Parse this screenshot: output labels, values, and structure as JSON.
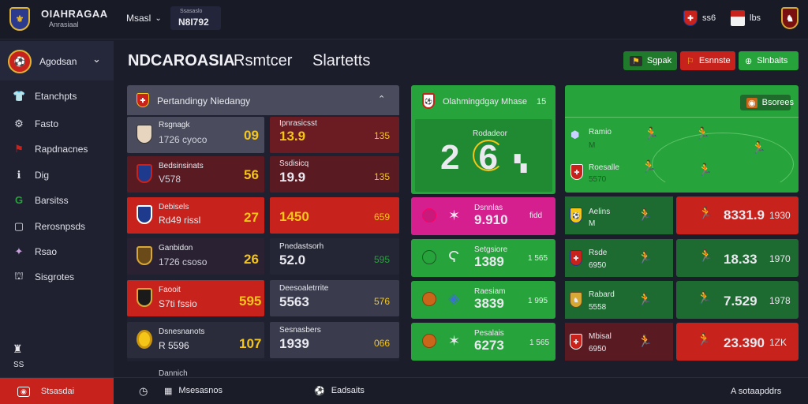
{
  "app": {
    "name": "OIAHRAGAA",
    "subtitle": "Anrasiaal",
    "nav_label": "Msasl",
    "score_box": {
      "top": "Ssasaslo",
      "value": "N8I792"
    },
    "right_items": [
      "ss6",
      "lbs"
    ]
  },
  "sidebar": {
    "header": "Agodsan",
    "items": [
      {
        "icon": "shirt-icon",
        "glyph": "👕",
        "label": "Etanchpts"
      },
      {
        "icon": "gear-icon",
        "glyph": "⚙",
        "label": "Fasto"
      },
      {
        "icon": "flag-icon",
        "glyph": "⚑",
        "label": "Rapdnacnes"
      },
      {
        "icon": "info-icon",
        "glyph": "ℹ",
        "label": "Dig"
      },
      {
        "icon": "g-logo-icon",
        "glyph": "G",
        "label": "Barsitss"
      },
      {
        "icon": "document-icon",
        "glyph": "▢",
        "label": "Rerosnpsds"
      },
      {
        "icon": "user-group-icon",
        "glyph": "✦",
        "label": "Rsao"
      },
      {
        "icon": "stadium-icon",
        "glyph": "⛫",
        "label": "Sisgrotes"
      }
    ],
    "footer_label": "SS"
  },
  "tabs": [
    "NDCAROASIA",
    "Rsmtcer",
    "Slartetts"
  ],
  "actions": [
    {
      "label": "Sgpak",
      "color": "#1f7a2c"
    },
    {
      "label": "Esnnste",
      "color": "#c7221c"
    },
    {
      "label": "Slnbaits",
      "color": "#27a33b"
    }
  ],
  "left_panel": {
    "title": "Pertandingy Niedangy",
    "rows": [
      {
        "name": "Rsgnagk",
        "sub": "1726 cyoco",
        "score": "09",
        "value_label": "Ipnrasicsst",
        "value": "13.9",
        "stat": "135"
      },
      {
        "name": "Bedsinsinats",
        "sub": "V578",
        "score": "56",
        "value_label": "Ssdisicq",
        "value": "19.9",
        "stat": "135"
      },
      {
        "name": "Debisels",
        "sub": "Rd49 rissl",
        "score": "27",
        "value_label": "",
        "value": "1450",
        "stat": "659"
      },
      {
        "name": "Ganbidon",
        "sub": "1726 csoso",
        "score": "26",
        "value_label": "Pnedastsorh",
        "value": "52.0",
        "stat": "595"
      },
      {
        "name": "Faooit",
        "sub": "S7ti fssio",
        "score": "595",
        "value_label": "Deesoaletrrite",
        "value": "5563",
        "stat": "576"
      },
      {
        "name": "Dsnesnanots",
        "sub": "R 5596",
        "score": "107",
        "value_label": "Sesnasbers",
        "value": "1939",
        "stat": "066"
      }
    ],
    "cut_row": "Dannich"
  },
  "match_panel": {
    "title": "Olahmingdgay Mhase",
    "count": "15",
    "label": "Rodadeor",
    "score": "26",
    "rows": [
      {
        "label": "Dsnnlas",
        "value": "9.910",
        "stat": "fidd"
      },
      {
        "label": "Setgsiore",
        "value": "1389",
        "stat": "1 565"
      },
      {
        "label": "Raesiam",
        "value": "3839",
        "stat": "1 995"
      },
      {
        "label": "Pesalais",
        "value": "6273",
        "stat": "1 565"
      }
    ]
  },
  "pitch_panel": {
    "button": "Bsorees",
    "labels": [
      {
        "name": "Ramio",
        "sub": "M"
      },
      {
        "name": "Roesalle",
        "sub": "5570"
      }
    ],
    "rows": [
      {
        "name": "Aelins",
        "sub": "M",
        "value": "8331.9",
        "stat": "1930"
      },
      {
        "name": "Rsde",
        "sub": "6950",
        "value": "18.33",
        "stat": "1970"
      },
      {
        "name": "Rabard",
        "sub": "5558",
        "value": "7.529",
        "stat": "1978"
      },
      {
        "name": "Mbisal",
        "sub": "6950",
        "value": "23.390",
        "stat": "1ZK"
      }
    ]
  },
  "bottom": {
    "live": "Stsasdai",
    "items": [
      "Msesasnos",
      "Eadsaits"
    ],
    "right": "A sotaapddrs"
  },
  "colors": {
    "red": "#c7221c",
    "dark_red": "#6b1b22",
    "green": "#27a33b",
    "magenta": "#d61f8f",
    "yellow": "#f5c518"
  }
}
